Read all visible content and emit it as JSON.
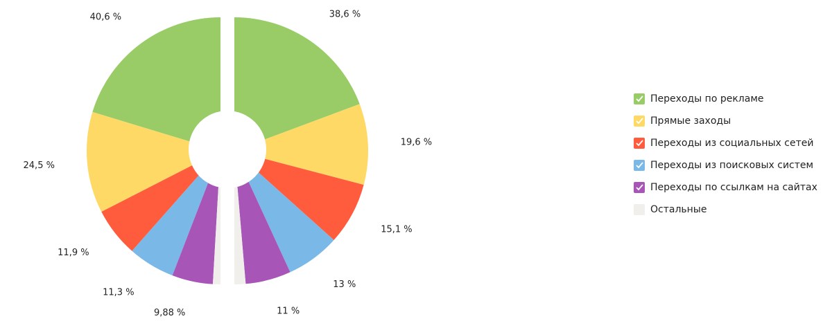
{
  "chart_data": {
    "type": "split-donut",
    "categories": [
      "Переходы по рекламе",
      "Прямые заходы",
      "Переходы из социальных сетей",
      "Переходы из поисковых систем",
      "Переходы по ссылкам на сайтах",
      "Остальные"
    ],
    "colors": [
      "#99cc66",
      "#ffd966",
      "#ff5c3d",
      "#7ab8e8",
      "#a855b8",
      "#f1efeb"
    ],
    "halves": [
      {
        "values": [
          40.6,
          24.5,
          11.9,
          11.3,
          9.88,
          1.82
        ],
        "value_labels": [
          "40,6 %",
          "24,5 %",
          "11,9 %",
          "11,3 %",
          "9,88 %",
          null
        ]
      },
      {
        "values": [
          38.6,
          19.6,
          15.1,
          13,
          11,
          2.7
        ],
        "value_labels": [
          "38,6 %",
          "19,6 %",
          "15,1 %",
          "13 %",
          "11 %",
          null
        ]
      }
    ]
  }
}
